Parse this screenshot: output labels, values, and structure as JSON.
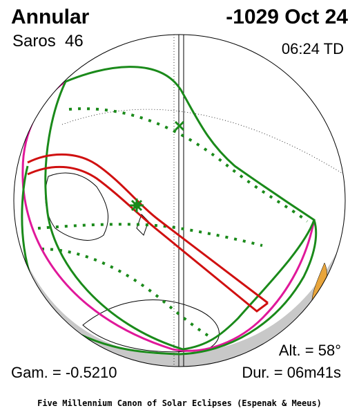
{
  "header": {
    "eclipse_type": "Annular",
    "saros": "Saros  46",
    "date": "-1029 Oct 24",
    "time": "06:24 TD"
  },
  "footer": {
    "altitude": "Alt. = 58°",
    "gamma": "Gam. = -0.5210",
    "duration": "Dur. = 06m41s",
    "credit": "Five Millennium Canon of Solar Eclipses (Espenak & Meeus)"
  }
}
